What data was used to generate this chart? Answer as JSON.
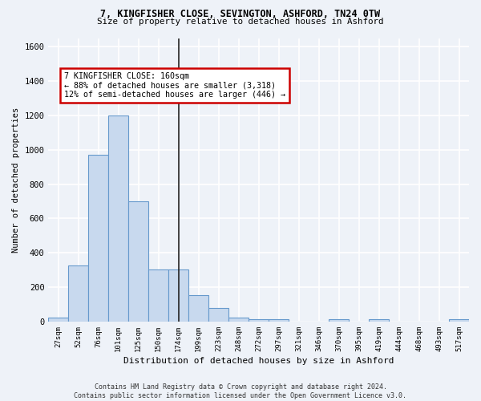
{
  "title1": "7, KINGFISHER CLOSE, SEVINGTON, ASHFORD, TN24 0TW",
  "title2": "Size of property relative to detached houses in Ashford",
  "xlabel": "Distribution of detached houses by size in Ashford",
  "ylabel": "Number of detached properties",
  "categories": [
    "27sqm",
    "52sqm",
    "76sqm",
    "101sqm",
    "125sqm",
    "150sqm",
    "174sqm",
    "199sqm",
    "223sqm",
    "248sqm",
    "272sqm",
    "297sqm",
    "321sqm",
    "346sqm",
    "370sqm",
    "395sqm",
    "419sqm",
    "444sqm",
    "468sqm",
    "493sqm",
    "517sqm"
  ],
  "values": [
    25,
    325,
    970,
    1200,
    700,
    305,
    305,
    155,
    80,
    25,
    15,
    15,
    0,
    0,
    15,
    0,
    15,
    0,
    0,
    0,
    15
  ],
  "bar_color": "#c8d9ee",
  "bar_edge_color": "#6699cc",
  "annotation_text": "7 KINGFISHER CLOSE: 160sqm\n← 88% of detached houses are smaller (3,318)\n12% of semi-detached houses are larger (446) →",
  "annotation_box_color": "#ffffff",
  "annotation_box_edge_color": "#cc0000",
  "vline_x": 6.0,
  "footnote": "Contains HM Land Registry data © Crown copyright and database right 2024.\nContains public sector information licensed under the Open Government Licence v3.0.",
  "ylim": [
    0,
    1650
  ],
  "background_color": "#eef2f8",
  "grid_color": "#ffffff",
  "yticks": [
    0,
    200,
    400,
    600,
    800,
    1000,
    1200,
    1400,
    1600
  ]
}
